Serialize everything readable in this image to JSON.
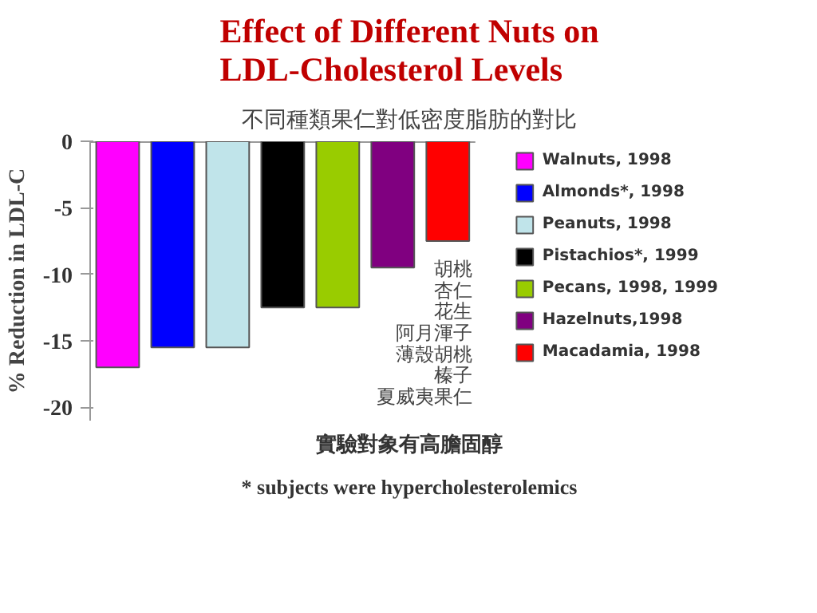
{
  "chart_data": {
    "type": "bar",
    "title": "Effect of Different Nuts on\nLDL-Cholesterol Levels",
    "subtitle": "不同種類果仁對低密度脂肪的對比",
    "ylabel": "% Reduction in LDL-C",
    "categories": [
      null
    ],
    "series": [
      {
        "name": "Walnuts, 1998",
        "color": "#ff00ff",
        "values": [
          -17
        ]
      },
      {
        "name": "Almonds*, 1998",
        "color": "#0000ff",
        "values": [
          -15.5
        ]
      },
      {
        "name": "Peanuts, 1998",
        "color": "#c0e4ea",
        "values": [
          -15.5
        ]
      },
      {
        "name": "Pistachios*, 1999",
        "color": "#000000",
        "values": [
          -12.5
        ]
      },
      {
        "name": "Pecans, 1998, 1999",
        "color": "#99cc00",
        "values": [
          -12.5
        ]
      },
      {
        "name": "Hazelnuts,1998",
        "color": "#800080",
        "values": [
          -9.5
        ]
      },
      {
        "name": "Macadamia, 1998",
        "color": "#ff0000",
        "values": [
          -7.5
        ]
      }
    ],
    "ylim": [
      -21,
      0
    ],
    "yticks": [
      0,
      -5,
      -10,
      -15,
      -20
    ],
    "legend": "right",
    "tick_labels": "y",
    "annotations": [
      "胡桃",
      "杏仁",
      "花生",
      "阿月渾子",
      "薄殼胡桃",
      "榛子",
      "夏威夷果仁",
      "* subjects were hypercholesterolemics",
      "實驗對象有高膽固醇"
    ]
  }
}
